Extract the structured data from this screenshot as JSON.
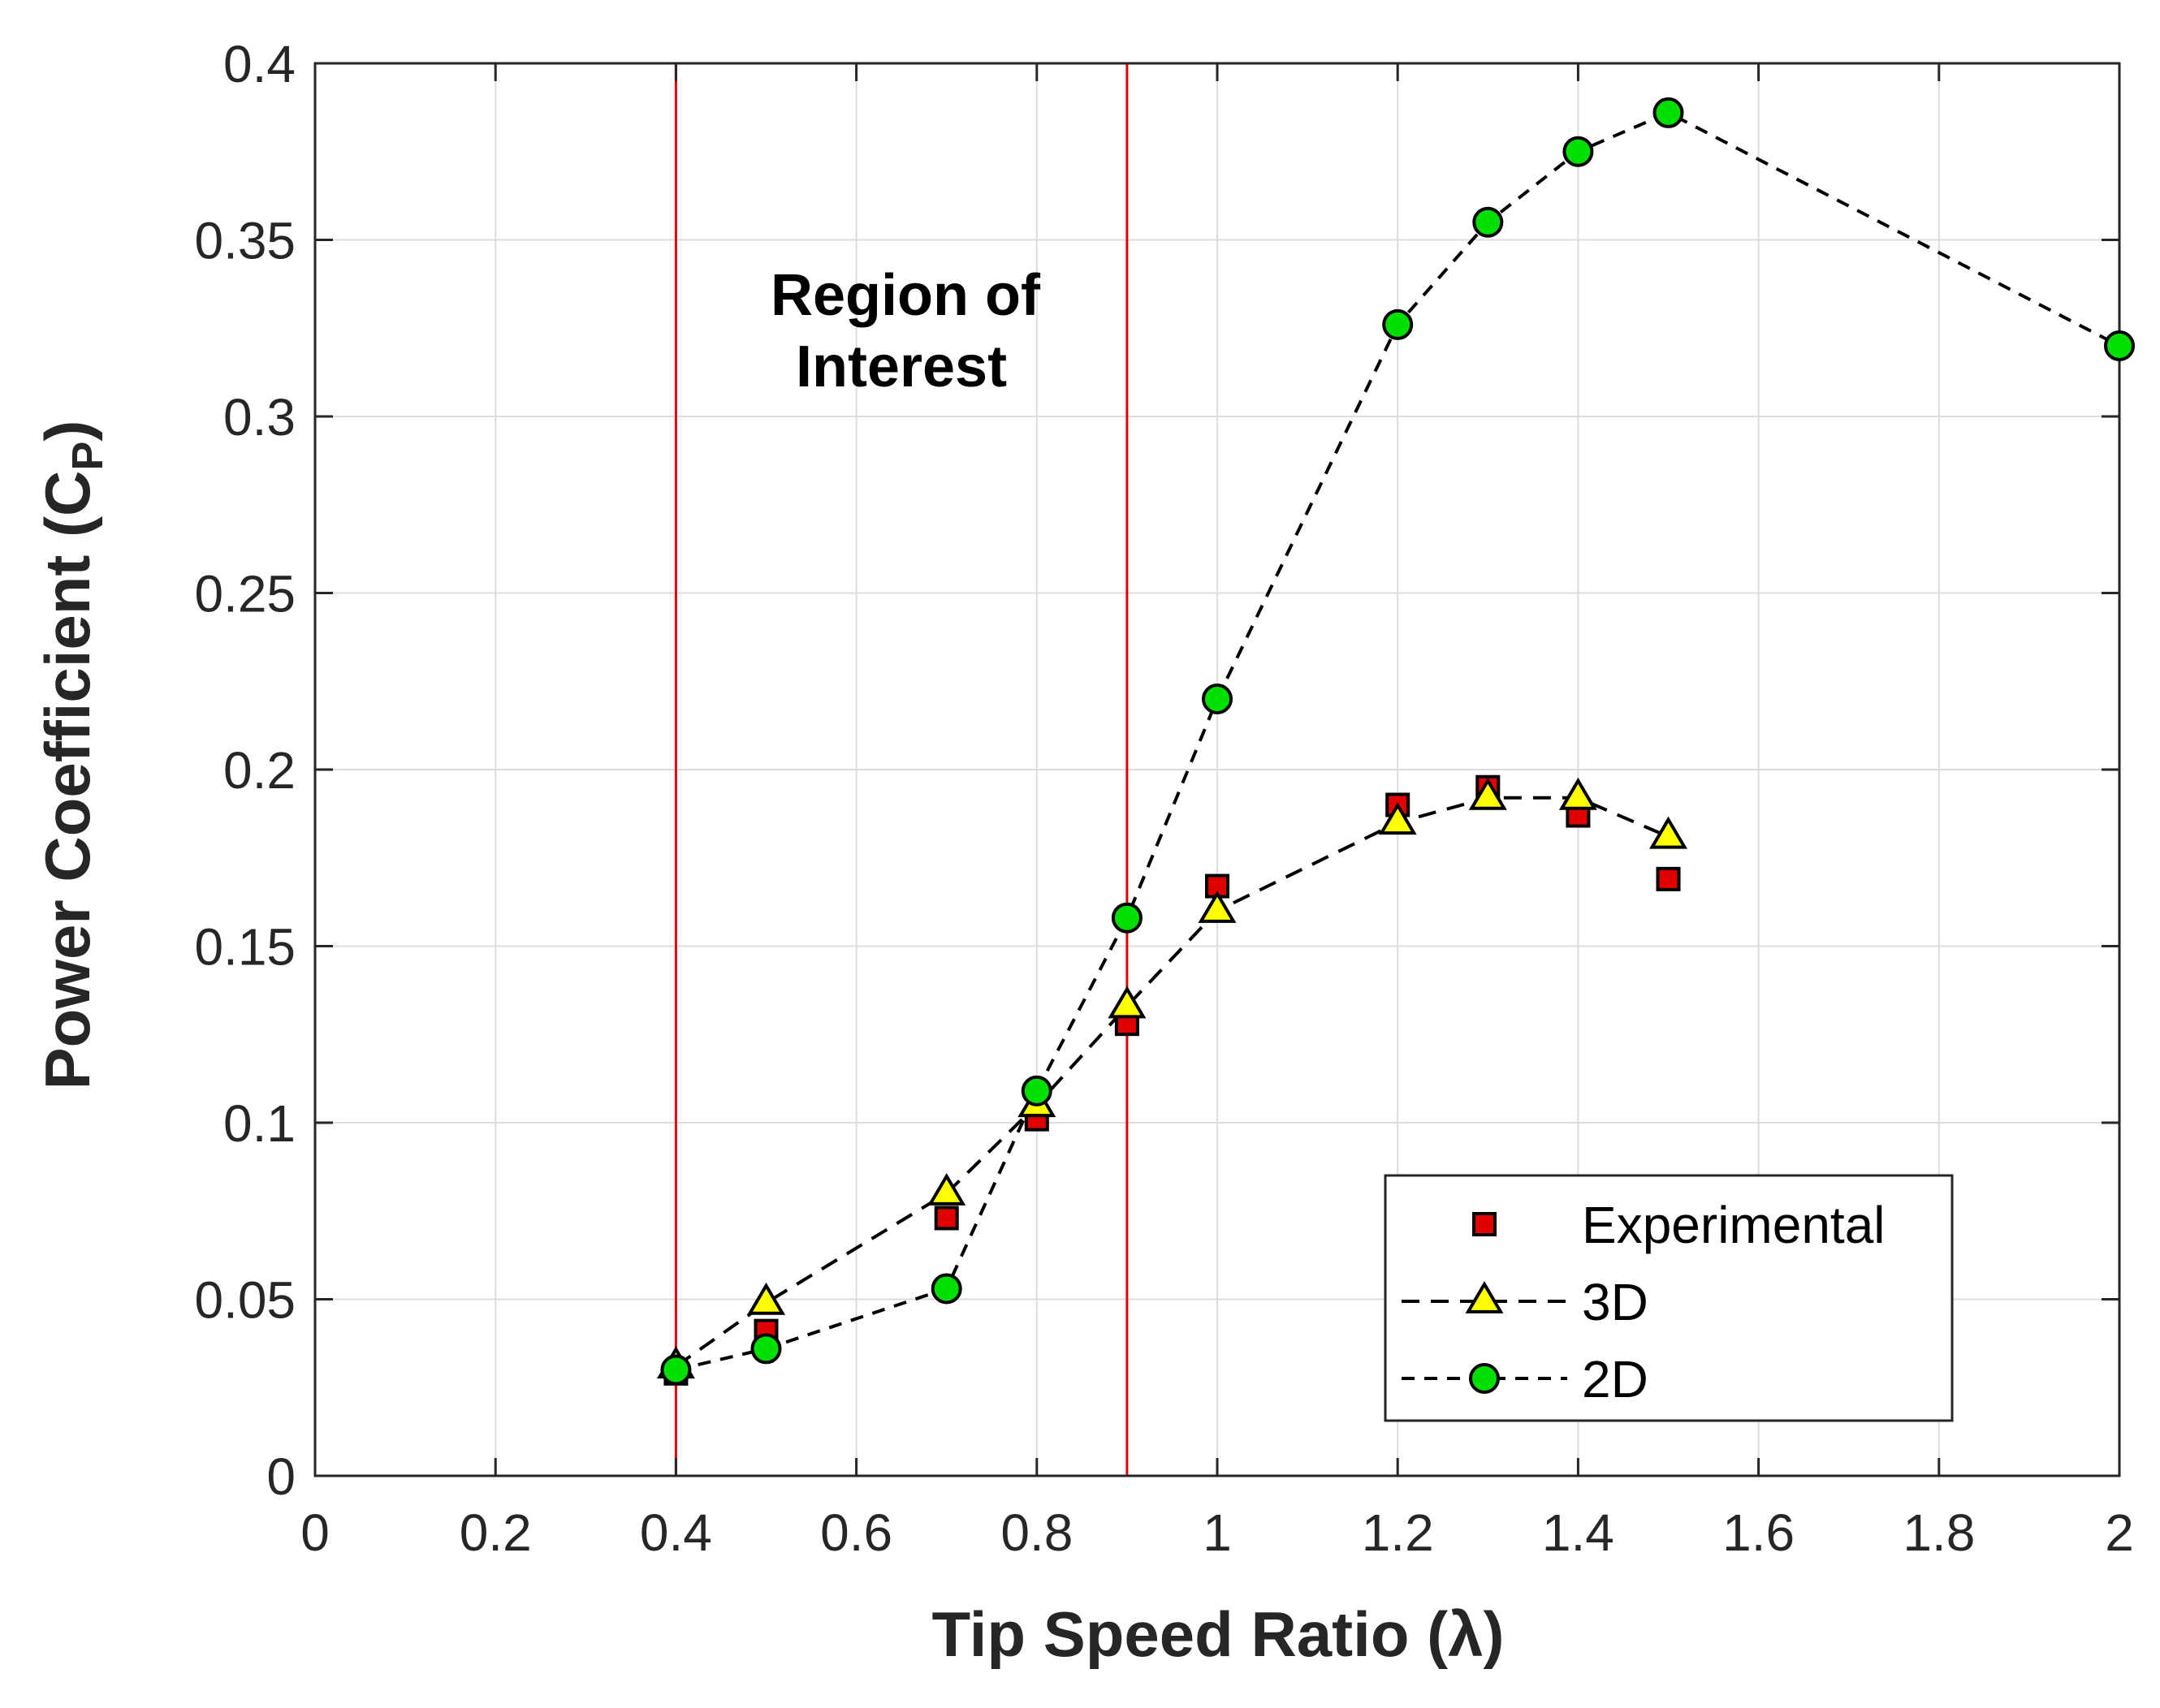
{
  "chart_data": {
    "type": "scatter",
    "xlabel": "Tip Speed Ratio (λ)",
    "ylabel_main": "Power Coefficient (C",
    "ylabel_sub": "P",
    "ylabel_close": ")",
    "xlim": [
      0,
      2
    ],
    "ylim": [
      0,
      0.4
    ],
    "xticks": [
      0,
      0.2,
      0.4,
      0.6,
      0.8,
      1,
      1.2,
      1.4,
      1.6,
      1.8,
      2
    ],
    "xtick_labels": [
      "0",
      "0.2",
      "0.4",
      "0.6",
      "0.8",
      "1",
      "1.2",
      "1.4",
      "1.6",
      "1.8",
      "2"
    ],
    "yticks": [
      0,
      0.05,
      0.1,
      0.15,
      0.2,
      0.25,
      0.3,
      0.35,
      0.4
    ],
    "ytick_labels": [
      "0",
      "0.05",
      "0.1",
      "0.15",
      "0.2",
      "0.25",
      "0.3",
      "0.35",
      "0.4"
    ],
    "grid": true,
    "legend_position": "bottom-right",
    "vertical_lines": [
      0.4,
      0.9
    ],
    "annotation": {
      "line1": "Region of",
      "line2": "Interest",
      "x": 0.65,
      "y": 0.335
    },
    "series": [
      {
        "name": "Experimental",
        "marker": "square",
        "line": "none",
        "color": "#e00000",
        "x": [
          0.4,
          0.5,
          0.7,
          0.8,
          0.9,
          1.0,
          1.2,
          1.3,
          1.4,
          1.5
        ],
        "y": [
          0.029,
          0.041,
          0.073,
          0.101,
          0.128,
          0.167,
          0.19,
          0.195,
          0.187,
          0.169
        ]
      },
      {
        "name": "3D",
        "marker": "triangle",
        "line": "dashed",
        "color": "#ffff00",
        "x": [
          0.4,
          0.5,
          0.7,
          0.8,
          0.9,
          1.0,
          1.2,
          1.3,
          1.4,
          1.5
        ],
        "y": [
          0.031,
          0.049,
          0.08,
          0.105,
          0.133,
          0.16,
          0.185,
          0.192,
          0.192,
          0.181
        ]
      },
      {
        "name": "2D",
        "marker": "circle",
        "line": "dashed",
        "color": "#00e000",
        "x": [
          0.4,
          0.5,
          0.7,
          0.8,
          0.9,
          1.0,
          1.2,
          1.3,
          1.4,
          1.5,
          2.0
        ],
        "y": [
          0.03,
          0.036,
          0.053,
          0.109,
          0.158,
          0.22,
          0.326,
          0.355,
          0.375,
          0.386,
          0.32
        ]
      }
    ]
  }
}
